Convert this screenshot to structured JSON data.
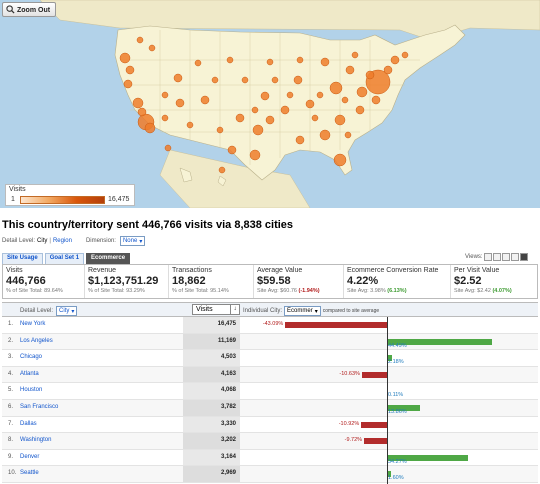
{
  "map": {
    "zoom_label": "Zoom Out",
    "legend_title": "Visits",
    "legend_min": "1",
    "legend_max": "16,475",
    "colors": {
      "water": "#b2d2e9",
      "land": "#f7f3d5",
      "dot": "#ef7d2a",
      "dot_stroke": "#c95a12"
    }
  },
  "headline": "This country/territory sent 446,766 visits via 8,838 cities",
  "detail": {
    "label": "Detail Level:",
    "city": "City",
    "sep": "|",
    "region": "Region",
    "dimension_label": "Dimension:",
    "dimension_value": "None"
  },
  "tabs": [
    {
      "label": "Site Usage",
      "active": false
    },
    {
      "label": "Goal Set 1",
      "active": false
    },
    {
      "label": "Ecommerce",
      "active": true
    }
  ],
  "views_label": "Views:",
  "scorecards": {
    "visits": {
      "label": "Visits",
      "value": "446,766",
      "sub": "% of Site Total: 89.64%"
    },
    "revenue": {
      "label": "Revenue",
      "value": "$1,123,751.29",
      "sub": "% of Site Total: 93.29%"
    },
    "transactions": {
      "label": "Transactions",
      "value": "18,862",
      "sub": "% of Site Total: 95.14%"
    },
    "avg_value": {
      "label": "Average Value",
      "value": "$59.58",
      "sub_prefix": "Site Avg: $60.76",
      "sub_delta": "(-1.94%)"
    },
    "conv_rate": {
      "label": "Ecommerce Conversion Rate",
      "value": "4.22%",
      "sub_prefix": "Site Avg: 3.98%",
      "sub_delta": "(6.13%)"
    },
    "per_visit": {
      "label": "Per Visit Value",
      "value": "$2.52",
      "sub_prefix": "Site Avg: $2.42",
      "sub_delta": "(4.07%)"
    }
  },
  "table": {
    "detail_level_label": "Detail Level:",
    "detail_level_value": "City",
    "visits_header": "Visits",
    "individual_city_label": "Individual City:",
    "individual_city_select": "Ecommer",
    "compare_label": "compared to site average",
    "rows": [
      {
        "idx": "1.",
        "city": "New York",
        "visits": "16,475",
        "delta": -43.09,
        "delta_label": "-43.09%"
      },
      {
        "idx": "2.",
        "city": "Los Angeles",
        "visits": "11,169",
        "delta": 44.49,
        "delta_label": "44.49%"
      },
      {
        "idx": "3.",
        "city": "Chicago",
        "visits": "4,503",
        "delta": 2.18,
        "delta_label": "2.18%"
      },
      {
        "idx": "4.",
        "city": "Atlanta",
        "visits": "4,163",
        "delta": -10.63,
        "delta_label": "-10.63%"
      },
      {
        "idx": "5.",
        "city": "Houston",
        "visits": "4,068",
        "delta": 0.11,
        "delta_label": "0.11%"
      },
      {
        "idx": "6.",
        "city": "San Francisco",
        "visits": "3,782",
        "delta": 13.86,
        "delta_label": "13.86%"
      },
      {
        "idx": "7.",
        "city": "Dallas",
        "visits": "3,330",
        "delta": -10.92,
        "delta_label": "-10.92%"
      },
      {
        "idx": "8.",
        "city": "Washington",
        "visits": "3,202",
        "delta": -9.72,
        "delta_label": "-9.72%"
      },
      {
        "idx": "9.",
        "city": "Denver",
        "visits": "3,164",
        "delta": 34.27,
        "delta_label": "34.27%"
      },
      {
        "idx": "10.",
        "city": "Seattle",
        "visits": "2,969",
        "delta": 1.6,
        "delta_label": "1.60%"
      }
    ]
  }
}
